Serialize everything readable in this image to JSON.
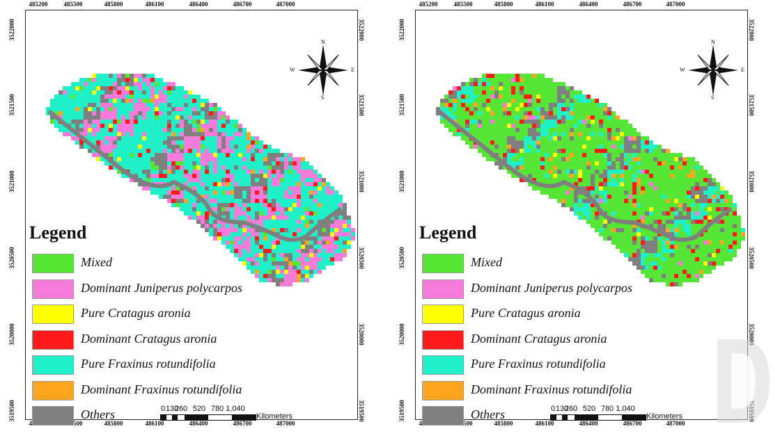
{
  "x_ticks": [
    "485200",
    "485500",
    "485800",
    "486100",
    "486400",
    "486700",
    "487000"
  ],
  "y_ticks": [
    "3522000",
    "3521500",
    "3521000",
    "3520500",
    "3520000",
    "3519500"
  ],
  "compass": {
    "n": "N",
    "s": "S",
    "e": "E",
    "w": "W"
  },
  "legend": {
    "title": "Legend",
    "items": [
      {
        "label": "Mixed",
        "color": "#55e636"
      },
      {
        "label": "Dominant Juniperus polycarpos",
        "color": "#f57ad9"
      },
      {
        "label": "Pure Cratagus aronia",
        "color": "#ffff00"
      },
      {
        "label": "Dominant Cratagus aronia",
        "color": "#ff1a1a"
      },
      {
        "label": "Pure Fraxinus rotundifolia",
        "color": "#1ff0c8"
      },
      {
        "label": "Dominant Fraxinus rotundifolia",
        "color": "#ffa51f"
      },
      {
        "label": "Others",
        "color": "#7f7f7f"
      }
    ]
  },
  "scale": {
    "labels": [
      "0",
      "130",
      "260",
      "520",
      "780",
      "1,040"
    ],
    "unit": "Kilometers"
  },
  "maps": [
    {
      "name": "left-map",
      "dominant": "Pure Fraxinus rotundifolia"
    },
    {
      "name": "right-map",
      "dominant": "Mixed"
    }
  ]
}
